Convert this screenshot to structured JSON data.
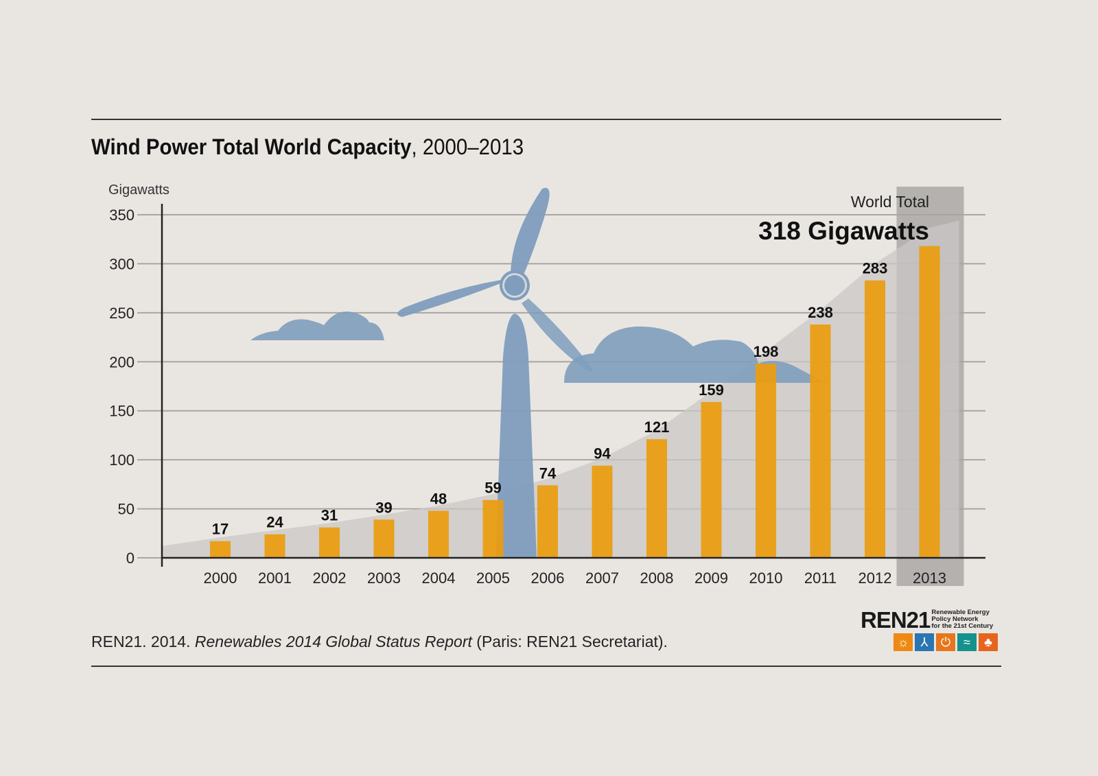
{
  "chart_data": {
    "type": "bar",
    "title_bold": "Wind Power Total World Capacity",
    "title_rest": ", 2000–2013",
    "ylabel": "Gigawatts",
    "ylim": [
      0,
      350
    ],
    "yticks": [
      0,
      50,
      100,
      150,
      200,
      250,
      300,
      350
    ],
    "grid": true,
    "categories": [
      "2000",
      "2001",
      "2002",
      "2003",
      "2004",
      "2005",
      "2006",
      "2007",
      "2008",
      "2009",
      "2010",
      "2011",
      "2012",
      "2013"
    ],
    "values": [
      17,
      24,
      31,
      39,
      48,
      59,
      74,
      94,
      121,
      159,
      198,
      238,
      283,
      318
    ],
    "highlight_category": "2013",
    "annotation_label": "World Total",
    "annotation_value": "318 Gigawatts",
    "colors": {
      "bar": "#eb9c0f",
      "grid": "#a9a6a2",
      "turbine": "#7f9dbd",
      "area": "#c9c7c6",
      "highlight": "#aaa7a5",
      "background": "#e9e6e2"
    }
  },
  "source": {
    "prefix": "REN21. 2014. ",
    "italic": "Renewables 2014 Global Status Report",
    "suffix": " (Paris: REN21 Secretariat)."
  },
  "logo": {
    "word": "REN21",
    "line1": "Renewable Energy",
    "line2": "Policy Network",
    "line3": "for the 21st Century",
    "tiles": [
      {
        "icon": "sun-icon",
        "color": "#ee8a14"
      },
      {
        "icon": "wind-turbine-icon",
        "color": "#2a76b2"
      },
      {
        "icon": "flame-icon",
        "color": "#e8761d"
      },
      {
        "icon": "waves-icon",
        "color": "#15928d"
      },
      {
        "icon": "leaf-icon",
        "color": "#e6641e"
      }
    ]
  }
}
